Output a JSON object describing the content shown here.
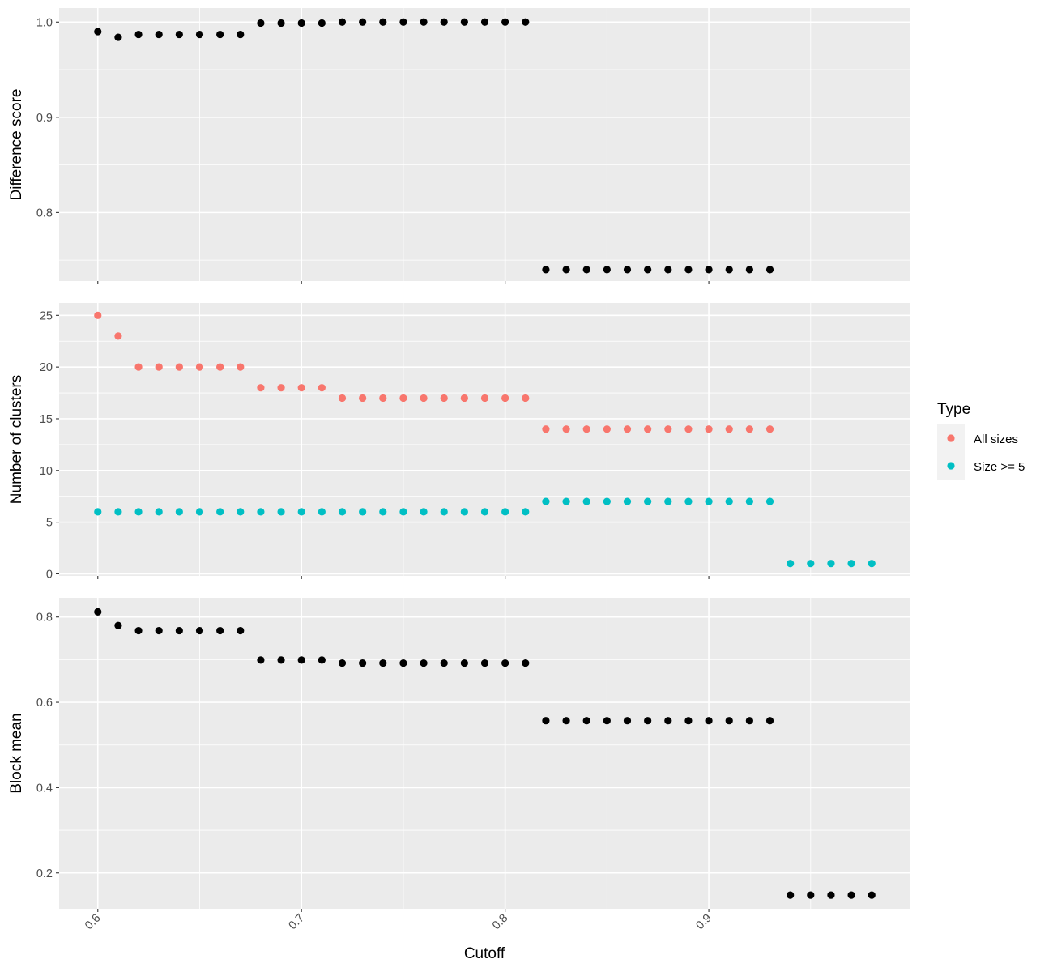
{
  "chart_data": {
    "type": "scatter",
    "xlabel": "Cutoff",
    "x_ticks": [
      0.6,
      0.7,
      0.8,
      0.9
    ],
    "xlim": [
      0.581,
      0.999
    ],
    "colors": {
      "default": "#000000",
      "All sizes": "#F8766D",
      "Size >= 5": "#00BFC4"
    },
    "legend": {
      "title": "Type",
      "position": "right",
      "entries": [
        "All sizes",
        "Size >= 5"
      ]
    },
    "panels": [
      {
        "id": "difference-score",
        "ylabel": "Difference score",
        "ylim": [
          0.728,
          1.0147
        ],
        "y_ticks": [
          0.8,
          0.9,
          1.0
        ],
        "y_tick_labels": [
          "0.8",
          "0.9",
          "1.0"
        ],
        "series": [
          {
            "name": "",
            "color": "#000000",
            "x": [
              0.6,
              0.61,
              0.62,
              0.63,
              0.64,
              0.65,
              0.66,
              0.67,
              0.68,
              0.69,
              0.7,
              0.71,
              0.72,
              0.73,
              0.74,
              0.75,
              0.76,
              0.77,
              0.78,
              0.79,
              0.8,
              0.81,
              0.82,
              0.83,
              0.84,
              0.85,
              0.86,
              0.87,
              0.88,
              0.89,
              0.9,
              0.91,
              0.92,
              0.93
            ],
            "y": [
              0.99,
              0.984,
              0.987,
              0.987,
              0.987,
              0.987,
              0.987,
              0.987,
              0.999,
              0.999,
              0.999,
              0.999,
              1.0,
              1.0,
              1.0,
              1.0,
              1.0,
              1.0,
              1.0,
              1.0,
              1.0,
              1.0,
              0.74,
              0.74,
              0.74,
              0.74,
              0.74,
              0.74,
              0.74,
              0.74,
              0.74,
              0.74,
              0.74,
              0.74
            ]
          }
        ]
      },
      {
        "id": "number-of-clusters",
        "ylabel": "Number of clusters",
        "ylim": [
          -0.2,
          26.2
        ],
        "y_ticks": [
          0,
          5,
          10,
          15,
          20,
          25
        ],
        "y_tick_labels": [
          "0",
          "5",
          "10",
          "15",
          "20",
          "25"
        ],
        "series": [
          {
            "name": "All sizes",
            "color": "#F8766D",
            "x": [
              0.6,
              0.61,
              0.62,
              0.63,
              0.64,
              0.65,
              0.66,
              0.67,
              0.68,
              0.69,
              0.7,
              0.71,
              0.72,
              0.73,
              0.74,
              0.75,
              0.76,
              0.77,
              0.78,
              0.79,
              0.8,
              0.81,
              0.82,
              0.83,
              0.84,
              0.85,
              0.86,
              0.87,
              0.88,
              0.89,
              0.9,
              0.91,
              0.92,
              0.93
            ],
            "y": [
              25,
              23,
              20,
              20,
              20,
              20,
              20,
              20,
              18,
              18,
              18,
              18,
              17,
              17,
              17,
              17,
              17,
              17,
              17,
              17,
              17,
              17,
              14,
              14,
              14,
              14,
              14,
              14,
              14,
              14,
              14,
              14,
              14,
              14
            ]
          },
          {
            "name": "Size >= 5",
            "color": "#00BFC4",
            "x": [
              0.6,
              0.61,
              0.62,
              0.63,
              0.64,
              0.65,
              0.66,
              0.67,
              0.68,
              0.69,
              0.7,
              0.71,
              0.72,
              0.73,
              0.74,
              0.75,
              0.76,
              0.77,
              0.78,
              0.79,
              0.8,
              0.81,
              0.82,
              0.83,
              0.84,
              0.85,
              0.86,
              0.87,
              0.88,
              0.89,
              0.9,
              0.91,
              0.92,
              0.93,
              0.94,
              0.95,
              0.96,
              0.97,
              0.98
            ],
            "y": [
              6,
              6,
              6,
              6,
              6,
              6,
              6,
              6,
              6,
              6,
              6,
              6,
              6,
              6,
              6,
              6,
              6,
              6,
              6,
              6,
              6,
              6,
              7,
              7,
              7,
              7,
              7,
              7,
              7,
              7,
              7,
              7,
              7,
              7,
              1,
              1,
              1,
              1,
              1
            ]
          }
        ]
      },
      {
        "id": "block-mean",
        "ylabel": "Block mean",
        "ylim": [
          0.116,
          0.845
        ],
        "y_ticks": [
          0.2,
          0.4,
          0.6,
          0.8
        ],
        "y_tick_labels": [
          "0.2",
          "0.4",
          "0.6",
          "0.8"
        ],
        "series": [
          {
            "name": "",
            "color": "#000000",
            "x": [
              0.6,
              0.61,
              0.62,
              0.63,
              0.64,
              0.65,
              0.66,
              0.67,
              0.68,
              0.69,
              0.7,
              0.71,
              0.72,
              0.73,
              0.74,
              0.75,
              0.76,
              0.77,
              0.78,
              0.79,
              0.8,
              0.81,
              0.82,
              0.83,
              0.84,
              0.85,
              0.86,
              0.87,
              0.88,
              0.89,
              0.9,
              0.91,
              0.92,
              0.93,
              0.94,
              0.95,
              0.96,
              0.97,
              0.98
            ],
            "y": [
              0.812,
              0.78,
              0.768,
              0.768,
              0.768,
              0.768,
              0.768,
              0.768,
              0.699,
              0.699,
              0.699,
              0.699,
              0.692,
              0.692,
              0.692,
              0.692,
              0.692,
              0.692,
              0.692,
              0.692,
              0.692,
              0.692,
              0.557,
              0.557,
              0.557,
              0.557,
              0.557,
              0.557,
              0.557,
              0.557,
              0.557,
              0.557,
              0.557,
              0.557,
              0.148,
              0.148,
              0.148,
              0.148,
              0.148
            ]
          }
        ]
      }
    ]
  }
}
